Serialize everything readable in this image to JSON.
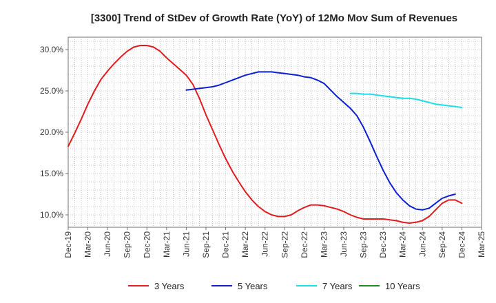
{
  "chart_data": {
    "type": "line",
    "title": "[3300]  Trend of StDev of Growth Rate (YoY) of 12Mo Mov Sum of Revenues",
    "xlabel": "",
    "ylabel": "",
    "ylim": [
      8.5,
      31.5
    ],
    "y_ticks": [
      10,
      15,
      20,
      25,
      30
    ],
    "y_tick_labels": [
      "10.0%",
      "15.0%",
      "20.0%",
      "25.0%",
      "30.0%"
    ],
    "x_tick_labels": [
      "Dec-19",
      "Mar-20",
      "Jun-20",
      "Sep-20",
      "Dec-20",
      "Mar-21",
      "Jun-21",
      "Sep-21",
      "Dec-21",
      "Mar-22",
      "Jun-22",
      "Sep-22",
      "Dec-22",
      "Mar-23",
      "Jun-23",
      "Sep-23",
      "Dec-23",
      "Mar-24",
      "Jun-24",
      "Sep-24",
      "Dec-24",
      "Mar-25"
    ],
    "x_start": "Dec-19",
    "x_months": 63,
    "grid": true,
    "legend_position": "bottom",
    "series": [
      {
        "name": "3 Years",
        "color": "#e31a1c",
        "start_index": 0,
        "values": [
          18.3,
          19.9,
          21.6,
          23.4,
          25.0,
          26.4,
          27.4,
          28.3,
          29.1,
          29.8,
          30.3,
          30.5,
          30.5,
          30.3,
          29.8,
          29.0,
          28.3,
          27.6,
          26.9,
          25.8,
          24.1,
          22.1,
          20.3,
          18.5,
          16.8,
          15.3,
          14.0,
          12.8,
          11.8,
          11.0,
          10.4,
          10.0,
          9.8,
          9.8,
          10.0,
          10.5,
          10.9,
          11.2,
          11.2,
          11.1,
          10.9,
          10.7,
          10.4,
          10.0,
          9.7,
          9.5,
          9.5,
          9.5,
          9.5,
          9.4,
          9.3,
          9.1,
          9.0,
          9.1,
          9.3,
          9.8,
          10.6,
          11.4,
          11.8,
          11.8,
          11.4
        ]
      },
      {
        "name": "5 Years",
        "color": "#0a1fd1",
        "start_index": 18,
        "values": [
          25.1,
          25.2,
          25.3,
          25.4,
          25.5,
          25.7,
          26.0,
          26.3,
          26.6,
          26.9,
          27.1,
          27.3,
          27.3,
          27.3,
          27.2,
          27.1,
          27.0,
          26.9,
          26.7,
          26.6,
          26.3,
          25.9,
          25.1,
          24.3,
          23.6,
          22.9,
          22.0,
          20.6,
          18.9,
          17.1,
          15.4,
          13.9,
          12.7,
          11.8,
          11.1,
          10.7,
          10.6,
          10.8,
          11.4,
          12.0,
          12.3,
          12.5
        ]
      },
      {
        "name": "7 Years",
        "color": "#19dde8",
        "start_index": 43,
        "values": [
          24.7,
          24.7,
          24.6,
          24.6,
          24.5,
          24.4,
          24.3,
          24.2,
          24.1,
          24.1,
          24.0,
          23.8,
          23.6,
          23.4,
          23.3,
          23.2,
          23.1,
          23.0
        ]
      },
      {
        "name": "10 Years",
        "color": "#1d8a1d",
        "start_index": 0,
        "values": []
      }
    ]
  }
}
